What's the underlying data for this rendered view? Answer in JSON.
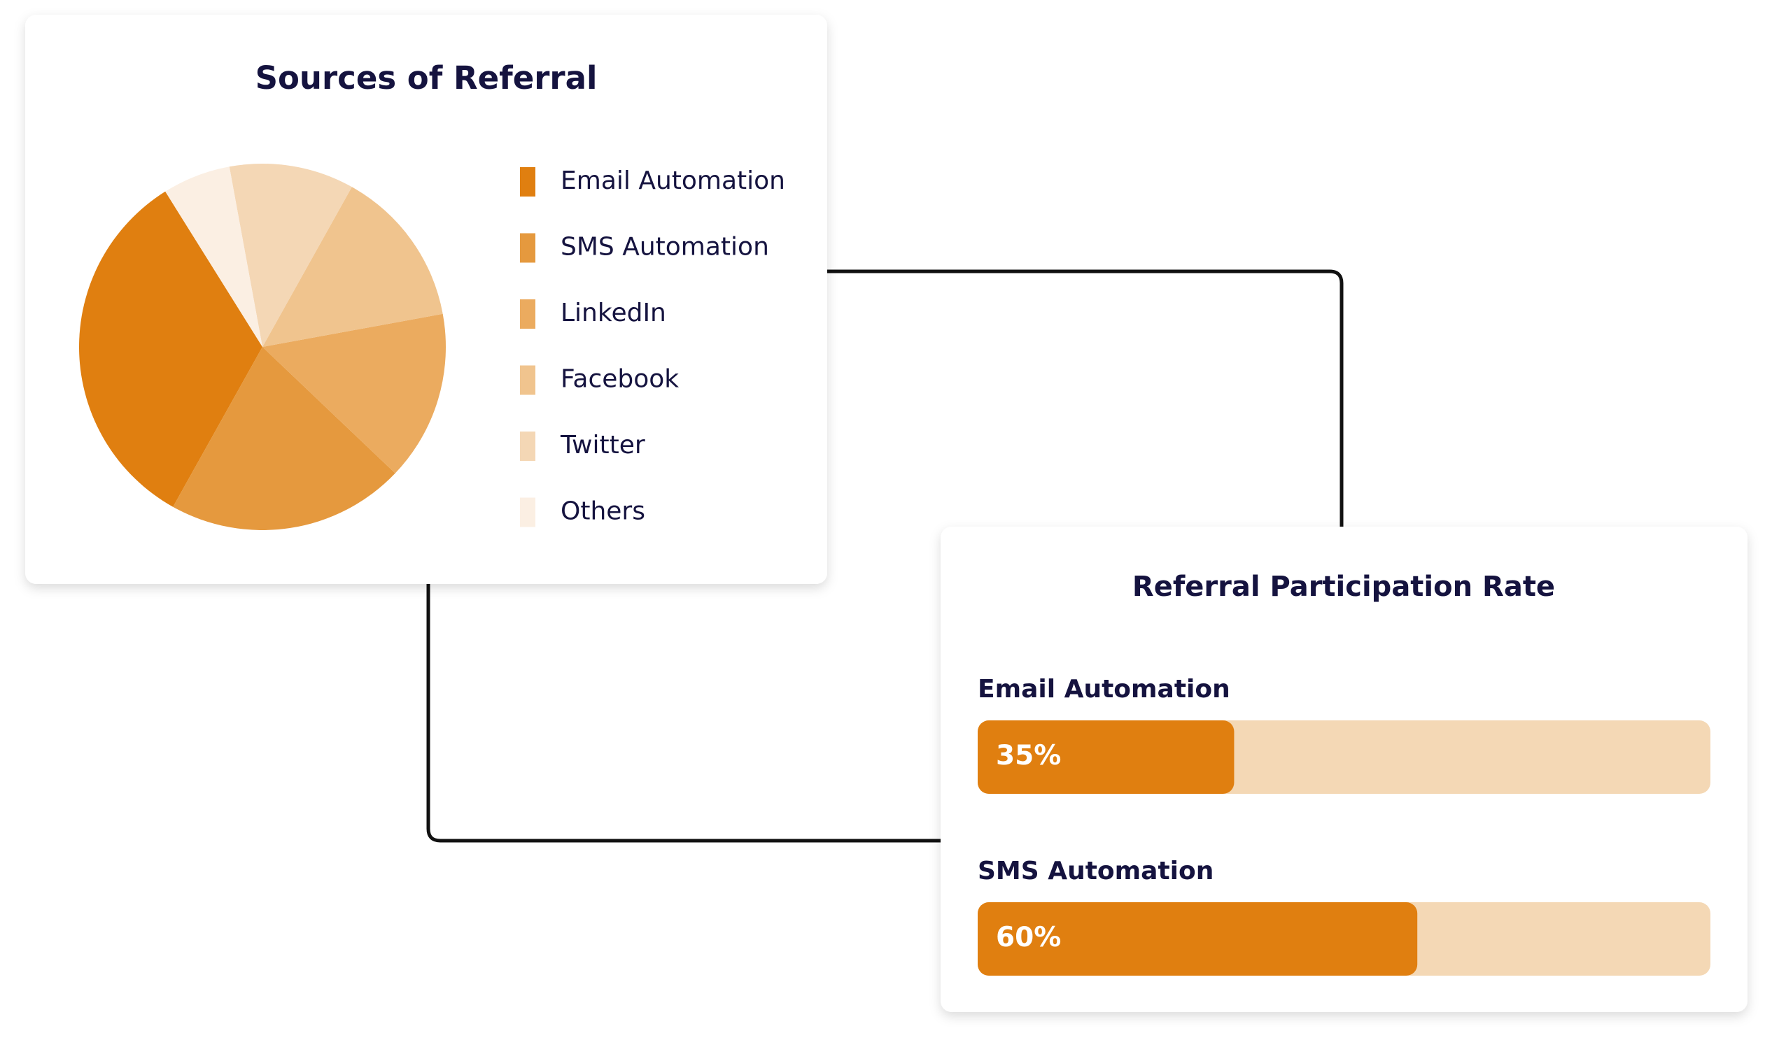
{
  "chart_data": [
    {
      "type": "pie",
      "title": "Sources of Referral",
      "categories": [
        "Email Automation",
        "SMS Automation",
        "LinkedIn",
        "Facebook",
        "Twitter",
        "Others"
      ],
      "values": [
        33,
        21,
        15,
        14,
        11,
        6
      ],
      "colors": [
        "#e07f10",
        "#e5993e",
        "#ebab5f",
        "#f0c48e",
        "#f4d7b5",
        "#fbefe3"
      ]
    },
    {
      "type": "bar",
      "orientation": "horizontal",
      "title": "Referral Participation Rate",
      "categories": [
        "Email Automation",
        "SMS Automation"
      ],
      "values": [
        35,
        60
      ],
      "value_labels": [
        "35%",
        "60%"
      ],
      "xlim": [
        0,
        100
      ],
      "color": "#e07f10",
      "track_color": "#f4d8b5"
    }
  ]
}
